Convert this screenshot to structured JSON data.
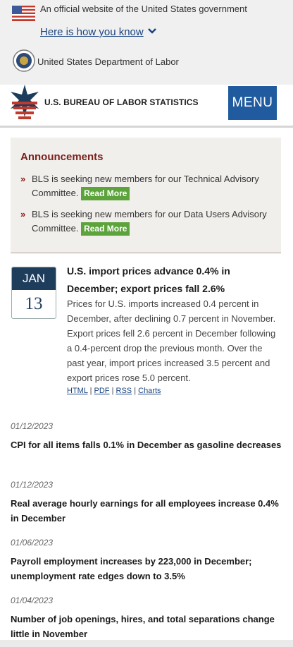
{
  "gov_banner": {
    "official_text": "An official website of the United States government",
    "how_you_know": "Here is how you know",
    "department": "United States Department of Labor"
  },
  "header": {
    "agency": "U.S. BUREAU OF LABOR STATISTICS",
    "menu_label": "MENU"
  },
  "announcements": {
    "title": "Announcements",
    "items": [
      {
        "text": "BLS is seeking new members for our Technical Advisory Committee.",
        "button": "Read More"
      },
      {
        "text": "BLS is seeking new members for our Data Users Advisory Committee.",
        "button": "Read More"
      }
    ]
  },
  "featured": {
    "month": "JAN",
    "day": "13",
    "headline": "U.S. import prices advance 0.4% in December; export prices fall 2.6%",
    "summary": "Prices for U.S. imports increased 0.4 percent in December, after declining 0.7 percent in November. Export prices fell 2.6 percent in December following a 0.4-percent drop the previous month. Over the past year, import prices increased 3.5 percent and export prices rose 5.0 percent.",
    "links": [
      "HTML",
      "PDF",
      "RSS",
      "Charts"
    ],
    "separator": "|"
  },
  "releases": [
    {
      "date": "01/12/2023",
      "title": "CPI for all items falls 0.1% in December as gasoline decreases"
    },
    {
      "date": "01/12/2023",
      "title": "Real average hourly earnings for all employees increase 0.4% in December"
    },
    {
      "date": "01/06/2023",
      "title": "Payroll employment increases by 223,000 in December; unemployment rate edges down to 3.5%"
    },
    {
      "date": "01/04/2023",
      "title": "Number of job openings, hires, and total separations change little in November"
    }
  ],
  "colors": {
    "menu_blue": "#1f5b9e",
    "announcement_red": "#7a1f1a",
    "read_more_green": "#5ca33c",
    "calendar_navy": "#1e3d5c"
  }
}
